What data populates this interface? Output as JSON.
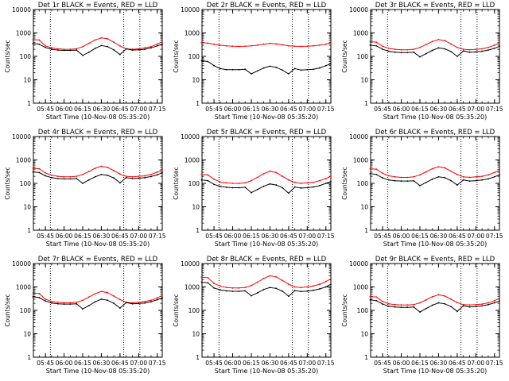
{
  "figure": {
    "xlabel": "Start Time (10-Nov-08 05:35:20)",
    "ylabel": "Counts/sec",
    "x_tick_labels": [
      "05:45",
      "06:00",
      "06:15",
      "06:30",
      "06:45",
      "07:00",
      "07:15"
    ],
    "y_tick_labels": [
      "1",
      "10",
      "100",
      "1000",
      "10000"
    ]
  },
  "chart_data": [
    {
      "type": "line",
      "title": "Det 1r BLACK = Events, RED = LLD",
      "xlabel": "Start Time (10-Nov-08 05:35:20)",
      "ylabel": "Counts/sec",
      "y_scale": "log",
      "ylim": [
        1,
        10000
      ],
      "x": [
        "05:35",
        "05:40",
        "05:45",
        "05:50",
        "05:55",
        "06:00",
        "06:05",
        "06:10",
        "06:15",
        "06:20",
        "06:25",
        "06:30",
        "06:35",
        "06:40",
        "06:45",
        "06:50",
        "06:55",
        "07:00",
        "07:05",
        "07:10",
        "07:15",
        "07:19"
      ],
      "series": [
        {
          "color": "#ff0000",
          "values": [
            520,
            500,
            280,
            230,
            210,
            200,
            200,
            210,
            260,
            360,
            500,
            620,
            560,
            400,
            280,
            210,
            200,
            210,
            230,
            260,
            330,
            420
          ]
        },
        {
          "color": "#000000",
          "values": [
            360,
            330,
            240,
            200,
            185,
            180,
            180,
            185,
            110,
            150,
            220,
            290,
            260,
            190,
            120,
            210,
            185,
            190,
            200,
            230,
            280,
            330
          ]
        }
      ],
      "vlines": [
        "05:49",
        "06:48",
        "07:01"
      ]
    },
    {
      "type": "line",
      "title": "Det 2r BLACK = Events, RED = LLD",
      "xlabel": "Start Time (10-Nov-08 05:35:20)",
      "ylabel": "Counts/sec",
      "y_scale": "log",
      "ylim": [
        1,
        10000
      ],
      "x": [
        "05:35",
        "05:40",
        "05:45",
        "05:50",
        "05:55",
        "06:00",
        "06:05",
        "06:10",
        "06:15",
        "06:20",
        "06:25",
        "06:30",
        "06:35",
        "06:40",
        "06:45",
        "06:50",
        "06:55",
        "07:00",
        "07:05",
        "07:10",
        "07:15",
        "07:19"
      ],
      "series": [
        {
          "color": "#ff0000",
          "values": [
            380,
            370,
            330,
            300,
            280,
            270,
            265,
            270,
            280,
            300,
            330,
            360,
            340,
            310,
            280,
            270,
            265,
            270,
            280,
            300,
            330,
            380
          ]
        },
        {
          "color": "#000000",
          "values": [
            65,
            60,
            40,
            30,
            27,
            27,
            27,
            28,
            18,
            24,
            32,
            38,
            34,
            26,
            18,
            30,
            26,
            27,
            28,
            32,
            40,
            48
          ]
        }
      ],
      "vlines": [
        "05:49",
        "06:48",
        "07:01"
      ]
    },
    {
      "type": "line",
      "title": "Det 3r BLACK = Events, RED = LLD",
      "xlabel": "Start Time (10-Nov-08 05:35:20)",
      "ylabel": "Counts/sec",
      "y_scale": "log",
      "ylim": [
        1,
        10000
      ],
      "x": [
        "05:35",
        "05:40",
        "05:45",
        "05:50",
        "05:55",
        "06:00",
        "06:05",
        "06:10",
        "06:15",
        "06:20",
        "06:25",
        "06:30",
        "06:35",
        "06:40",
        "06:45",
        "06:50",
        "06:55",
        "07:00",
        "07:05",
        "07:10",
        "07:15",
        "07:19"
      ],
      "series": [
        {
          "color": "#ff0000",
          "values": [
            430,
            400,
            270,
            220,
            200,
            190,
            190,
            200,
            240,
            320,
            430,
            520,
            470,
            340,
            240,
            200,
            190,
            200,
            210,
            240,
            300,
            380
          ]
        },
        {
          "color": "#000000",
          "values": [
            300,
            280,
            200,
            165,
            150,
            145,
            145,
            150,
            95,
            130,
            180,
            230,
            210,
            160,
            100,
            170,
            150,
            155,
            165,
            185,
            220,
            270
          ]
        }
      ],
      "vlines": [
        "05:49",
        "06:48",
        "07:01"
      ]
    },
    {
      "type": "line",
      "title": "Det 4r BLACK = Events, RED = LLD",
      "xlabel": "Start Time (10-Nov-08 05:35:20)",
      "ylabel": "Counts/sec",
      "y_scale": "log",
      "ylim": [
        1,
        10000
      ],
      "x": [
        "05:35",
        "05:40",
        "05:45",
        "05:50",
        "05:55",
        "06:00",
        "06:05",
        "06:10",
        "06:15",
        "06:20",
        "06:25",
        "06:30",
        "06:35",
        "06:40",
        "06:45",
        "06:50",
        "06:55",
        "07:00",
        "07:05",
        "07:10",
        "07:15",
        "07:19"
      ],
      "series": [
        {
          "color": "#ff0000",
          "values": [
            440,
            420,
            280,
            220,
            200,
            190,
            190,
            200,
            240,
            320,
            440,
            540,
            480,
            350,
            250,
            200,
            190,
            200,
            210,
            240,
            300,
            380
          ]
        },
        {
          "color": "#000000",
          "values": [
            310,
            290,
            210,
            175,
            160,
            155,
            155,
            160,
            100,
            140,
            190,
            240,
            220,
            170,
            105,
            175,
            160,
            165,
            175,
            195,
            230,
            280
          ]
        }
      ],
      "vlines": [
        "05:49",
        "06:48",
        "07:01"
      ]
    },
    {
      "type": "line",
      "title": "Det 5r BLACK = Events, RED = LLD",
      "xlabel": "Start Time (10-Nov-08 05:35:20)",
      "ylabel": "Counts/sec",
      "y_scale": "log",
      "ylim": [
        1,
        10000
      ],
      "x": [
        "05:35",
        "05:40",
        "05:45",
        "05:50",
        "05:55",
        "06:00",
        "06:05",
        "06:10",
        "06:15",
        "06:20",
        "06:25",
        "06:30",
        "06:35",
        "06:40",
        "06:45",
        "06:50",
        "06:55",
        "07:00",
        "07:05",
        "07:10",
        "07:15",
        "07:19"
      ],
      "series": [
        {
          "color": "#ff0000",
          "values": [
            240,
            230,
            150,
            115,
            105,
            100,
            100,
            105,
            130,
            180,
            260,
            330,
            290,
            200,
            140,
            110,
            100,
            105,
            110,
            130,
            160,
            200
          ]
        },
        {
          "color": "#000000",
          "values": [
            140,
            130,
            90,
            75,
            68,
            65,
            65,
            68,
            40,
            55,
            75,
            95,
            85,
            65,
            38,
            70,
            63,
            65,
            70,
            80,
            100,
            120
          ]
        }
      ],
      "vlines": [
        "05:49",
        "06:48",
        "07:01"
      ]
    },
    {
      "type": "line",
      "title": "Det 6r BLACK = Events, RED = LLD",
      "xlabel": "Start Time (10-Nov-08 05:35:20)",
      "ylabel": "Counts/sec",
      "y_scale": "log",
      "ylim": [
        1,
        10000
      ],
      "x": [
        "05:35",
        "05:40",
        "05:45",
        "05:50",
        "05:55",
        "06:00",
        "06:05",
        "06:10",
        "06:15",
        "06:20",
        "06:25",
        "06:30",
        "06:35",
        "06:40",
        "06:45",
        "06:50",
        "06:55",
        "07:00",
        "07:05",
        "07:10",
        "07:15",
        "07:19"
      ],
      "series": [
        {
          "color": "#ff0000",
          "values": [
            420,
            400,
            270,
            210,
            190,
            180,
            180,
            190,
            230,
            310,
            420,
            510,
            460,
            330,
            240,
            190,
            180,
            190,
            200,
            230,
            290,
            360
          ]
        },
        {
          "color": "#000000",
          "values": [
            260,
            240,
            170,
            140,
            128,
            125,
            125,
            128,
            80,
            110,
            150,
            190,
            175,
            130,
            85,
            140,
            125,
            130,
            140,
            155,
            190,
            230
          ]
        }
      ],
      "vlines": [
        "05:49",
        "06:48",
        "07:01"
      ]
    },
    {
      "type": "line",
      "title": "Det 7r BLACK = Events, RED = LLD",
      "xlabel": "Start Time (10-Nov-08 05:35:20)",
      "ylabel": "Counts/sec",
      "y_scale": "log",
      "ylim": [
        1,
        10000
      ],
      "x": [
        "05:35",
        "05:40",
        "05:45",
        "05:50",
        "05:55",
        "06:00",
        "06:05",
        "06:10",
        "06:15",
        "06:20",
        "06:25",
        "06:30",
        "06:35",
        "06:40",
        "06:45",
        "06:50",
        "06:55",
        "07:00",
        "07:05",
        "07:10",
        "07:15",
        "07:19"
      ],
      "series": [
        {
          "color": "#ff0000",
          "values": [
            540,
            520,
            300,
            240,
            220,
            210,
            210,
            220,
            270,
            370,
            510,
            640,
            570,
            410,
            290,
            220,
            210,
            220,
            240,
            270,
            340,
            430
          ]
        },
        {
          "color": "#000000",
          "values": [
            380,
            350,
            250,
            205,
            190,
            185,
            185,
            190,
            115,
            160,
            230,
            300,
            270,
            200,
            125,
            215,
            190,
            195,
            205,
            235,
            285,
            340
          ]
        }
      ],
      "vlines": [
        "05:49",
        "06:48",
        "07:01"
      ]
    },
    {
      "type": "line",
      "title": "Det 8r BLACK = Events, RED = LLD",
      "xlabel": "Start Time (10-Nov-08 05:35:20)",
      "ylabel": "Counts/sec",
      "y_scale": "log",
      "ylim": [
        1,
        10000
      ],
      "x": [
        "05:35",
        "05:40",
        "05:45",
        "05:50",
        "05:55",
        "06:00",
        "06:05",
        "06:10",
        "06:15",
        "06:20",
        "06:25",
        "06:30",
        "06:35",
        "06:40",
        "06:45",
        "06:50",
        "06:55",
        "07:00",
        "07:05",
        "07:10",
        "07:15",
        "07:19"
      ],
      "series": [
        {
          "color": "#ff0000",
          "values": [
            2600,
            2500,
            1400,
            1100,
            950,
            900,
            900,
            950,
            1150,
            1600,
            2300,
            3000,
            2700,
            1900,
            1300,
            1000,
            950,
            1000,
            1100,
            1300,
            1700,
            2200
          ]
        },
        {
          "color": "#000000",
          "values": [
            1600,
            1500,
            900,
            750,
            680,
            650,
            650,
            680,
            420,
            560,
            780,
            950,
            870,
            660,
            400,
            700,
            640,
            660,
            720,
            820,
            1000,
            1300
          ]
        }
      ],
      "vlines": [
        "05:49",
        "06:48",
        "07:01"
      ]
    },
    {
      "type": "line",
      "title": "Det 9r BLACK = Events, RED = LLD",
      "xlabel": "Start Time (10-Nov-08 05:35:20)",
      "ylabel": "Counts/sec",
      "y_scale": "log",
      "ylim": [
        1,
        10000
      ],
      "x": [
        "05:35",
        "05:40",
        "05:45",
        "05:50",
        "05:55",
        "06:00",
        "06:05",
        "06:10",
        "06:15",
        "06:20",
        "06:25",
        "06:30",
        "06:35",
        "06:40",
        "06:45",
        "06:50",
        "06:55",
        "07:00",
        "07:05",
        "07:10",
        "07:15",
        "07:19"
      ],
      "series": [
        {
          "color": "#ff0000",
          "values": [
            390,
            370,
            240,
            190,
            175,
            170,
            170,
            175,
            210,
            280,
            380,
            460,
            410,
            300,
            215,
            175,
            170,
            175,
            185,
            210,
            260,
            330
          ]
        },
        {
          "color": "#000000",
          "values": [
            280,
            260,
            185,
            150,
            140,
            135,
            135,
            140,
            85,
            120,
            165,
            210,
            190,
            145,
            90,
            155,
            140,
            145,
            155,
            175,
            210,
            250
          ]
        }
      ],
      "vlines": [
        "05:49",
        "06:48",
        "07:01"
      ]
    }
  ]
}
